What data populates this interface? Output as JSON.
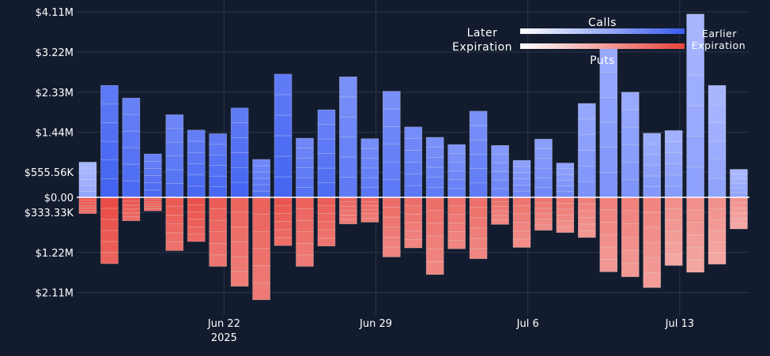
{
  "chart_data": {
    "type": "bar",
    "stacked": true,
    "y_axis": {
      "ylim": [
        -2.27,
        4.2
      ],
      "ticks": [
        {
          "value": 4.11,
          "label": "$4.11M"
        },
        {
          "value": 3.22,
          "label": "$3.22M"
        },
        {
          "value": 2.33,
          "label": "$2.33M"
        },
        {
          "value": 1.44,
          "label": "$1.44M"
        },
        {
          "value": 0.55556,
          "label": "$555.56K"
        },
        {
          "value": 0,
          "label": "$0.00"
        },
        {
          "value": -0.33333,
          "label": "$333.33K"
        },
        {
          "value": -1.22,
          "label": "$1.22M"
        },
        {
          "value": -2.11,
          "label": "$2.11M"
        }
      ]
    },
    "x_axis": {
      "ticks": [
        {
          "index": 6.28,
          "label": "Jun 22",
          "sublabel": "2025"
        },
        {
          "index": 13.28,
          "label": "Jun 29",
          "sublabel": ""
        },
        {
          "index": 20.28,
          "label": "Jul 6",
          "sublabel": ""
        },
        {
          "index": 27.28,
          "label": "Jul 13",
          "sublabel": ""
        }
      ]
    },
    "days": [
      {
        "calls": 0.78,
        "puts": -0.36,
        "c_shade": 0.78,
        "p_shade": 0.12
      },
      {
        "calls": 2.48,
        "puts": -1.47,
        "c_shade": 0.04,
        "p_shade": 0.04
      },
      {
        "calls": 2.2,
        "puts": -0.52,
        "c_shade": 0.12,
        "p_shade": 0.12
      },
      {
        "calls": 0.96,
        "puts": -0.3,
        "c_shade": 0.12,
        "p_shade": 0.12
      },
      {
        "calls": 1.83,
        "puts": -1.18,
        "c_shade": 0.18,
        "p_shade": 0.18
      },
      {
        "calls": 1.49,
        "puts": -0.98,
        "c_shade": 0.1,
        "p_shade": 0.1
      },
      {
        "calls": 1.41,
        "puts": -1.53,
        "c_shade": 0.08,
        "p_shade": 0.22
      },
      {
        "calls": 1.98,
        "puts": -1.97,
        "c_shade": 0.06,
        "p_shade": 0.3
      },
      {
        "calls": 0.84,
        "puts": -2.27,
        "c_shade": 0.2,
        "p_shade": 0.28
      },
      {
        "calls": 2.73,
        "puts": -1.07,
        "c_shade": 0.06,
        "p_shade": 0.14
      },
      {
        "calls": 1.31,
        "puts": -1.53,
        "c_shade": 0.2,
        "p_shade": 0.28
      },
      {
        "calls": 1.94,
        "puts": -1.08,
        "c_shade": 0.14,
        "p_shade": 0.22
      },
      {
        "calls": 2.67,
        "puts": -0.59,
        "c_shade": 0.3,
        "p_shade": 0.3
      },
      {
        "calls": 1.3,
        "puts": -0.55,
        "c_shade": 0.26,
        "p_shade": 0.3
      },
      {
        "calls": 2.35,
        "puts": -1.32,
        "c_shade": 0.28,
        "p_shade": 0.38
      },
      {
        "calls": 1.56,
        "puts": -1.12,
        "c_shade": 0.26,
        "p_shade": 0.38
      },
      {
        "calls": 1.33,
        "puts": -1.71,
        "c_shade": 0.3,
        "p_shade": 0.4
      },
      {
        "calls": 1.17,
        "puts": -1.14,
        "c_shade": 0.34,
        "p_shade": 0.4
      },
      {
        "calls": 1.91,
        "puts": -1.36,
        "c_shade": 0.3,
        "p_shade": 0.4
      },
      {
        "calls": 1.15,
        "puts": -0.6,
        "c_shade": 0.4,
        "p_shade": 0.4
      },
      {
        "calls": 0.82,
        "puts": -1.11,
        "c_shade": 0.46,
        "p_shade": 0.46
      },
      {
        "calls": 1.29,
        "puts": -0.73,
        "c_shade": 0.46,
        "p_shade": 0.46
      },
      {
        "calls": 0.76,
        "puts": -0.78,
        "c_shade": 0.5,
        "p_shade": 0.5
      },
      {
        "calls": 2.08,
        "puts": -0.89,
        "c_shade": 0.56,
        "p_shade": 0.56
      },
      {
        "calls": 3.32,
        "puts": -1.65,
        "c_shade": 0.58,
        "p_shade": 0.58
      },
      {
        "calls": 2.33,
        "puts": -1.76,
        "c_shade": 0.58,
        "p_shade": 0.58
      },
      {
        "calls": 1.42,
        "puts": -2.0,
        "c_shade": 0.62,
        "p_shade": 0.62
      },
      {
        "calls": 1.48,
        "puts": -1.51,
        "c_shade": 0.66,
        "p_shade": 0.72
      },
      {
        "calls": 4.06,
        "puts": -1.66,
        "c_shade": 0.72,
        "p_shade": 0.72
      },
      {
        "calls": 2.48,
        "puts": -1.48,
        "c_shade": 0.74,
        "p_shade": 0.74
      },
      {
        "calls": 0.62,
        "puts": -0.7,
        "c_shade": 0.76,
        "p_shade": 0.76
      }
    ],
    "legend": {
      "calls_label": "Calls",
      "puts_label": "Puts",
      "later_label": "Later",
      "expiration_left_label": "Expiration",
      "earlier_label": "Earlier",
      "expiration_right_label": "Expiration",
      "placement": "top-right"
    },
    "colors": {
      "background": "#131c2e",
      "grid": "#2a3648",
      "zero_line": "#ffffff",
      "calls_earlier": "#3a5cf0",
      "calls_later": "#a8b6ff",
      "puts_earlier": "#e8433c",
      "puts_later": "#f4a6a2"
    }
  }
}
